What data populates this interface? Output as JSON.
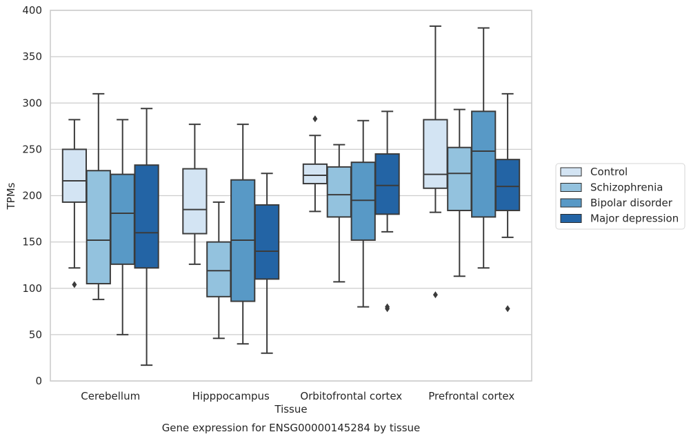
{
  "caption": "Gene expression for ENSG00000145284 by tissue",
  "chart_data": {
    "type": "box",
    "xlabel": "Tissue",
    "ylabel": "TPMs",
    "ylim": [
      0,
      400
    ],
    "yticks": [
      0,
      50,
      100,
      150,
      200,
      250,
      300,
      350,
      400
    ],
    "grid": "horizontal",
    "legend_position": "right",
    "categories": [
      "Cerebellum",
      "Hipppocampus",
      "Orbitofrontal cortex",
      "Prefrontal cortex"
    ],
    "series": [
      {
        "name": "Control",
        "color": "#d3e4f3",
        "boxes": [
          {
            "whisker_low": 122,
            "q1": 193,
            "median": 216,
            "q3": 250,
            "whisker_high": 282,
            "outliers": [
              104
            ]
          },
          {
            "whisker_low": 126,
            "q1": 159,
            "median": 185,
            "q3": 229,
            "whisker_high": 277,
            "outliers": []
          },
          {
            "whisker_low": 183,
            "q1": 213,
            "median": 222,
            "q3": 234,
            "whisker_high": 265,
            "outliers": [
              283
            ]
          },
          {
            "whisker_low": 182,
            "q1": 208,
            "median": 223,
            "q3": 282,
            "whisker_high": 383,
            "outliers": [
              93
            ]
          }
        ]
      },
      {
        "name": "Schizophrenia",
        "color": "#93c2de",
        "boxes": [
          {
            "whisker_low": 88,
            "q1": 105,
            "median": 152,
            "q3": 227,
            "whisker_high": 310,
            "outliers": []
          },
          {
            "whisker_low": 46,
            "q1": 91,
            "median": 119,
            "q3": 150,
            "whisker_high": 193,
            "outliers": []
          },
          {
            "whisker_low": 107,
            "q1": 177,
            "median": 201,
            "q3": 231,
            "whisker_high": 255,
            "outliers": []
          },
          {
            "whisker_low": 113,
            "q1": 184,
            "median": 224,
            "q3": 252,
            "whisker_high": 293,
            "outliers": []
          }
        ]
      },
      {
        "name": "Bipolar disorder",
        "color": "#5899c6",
        "boxes": [
          {
            "whisker_low": 50,
            "q1": 126,
            "median": 181,
            "q3": 223,
            "whisker_high": 282,
            "outliers": []
          },
          {
            "whisker_low": 40,
            "q1": 86,
            "median": 152,
            "q3": 217,
            "whisker_high": 277,
            "outliers": []
          },
          {
            "whisker_low": 80,
            "q1": 152,
            "median": 195,
            "q3": 236,
            "whisker_high": 281,
            "outliers": []
          },
          {
            "whisker_low": 122,
            "q1": 177,
            "median": 248,
            "q3": 291,
            "whisker_high": 381,
            "outliers": []
          }
        ]
      },
      {
        "name": "Major depression",
        "color": "#2364a5",
        "boxes": [
          {
            "whisker_low": 17,
            "q1": 122,
            "median": 160,
            "q3": 233,
            "whisker_high": 294,
            "outliers": []
          },
          {
            "whisker_low": 30,
            "q1": 110,
            "median": 140,
            "q3": 190,
            "whisker_high": 224,
            "outliers": []
          },
          {
            "whisker_low": 161,
            "q1": 180,
            "median": 211,
            "q3": 245,
            "whisker_high": 291,
            "outliers": [
              78,
              80
            ]
          },
          {
            "whisker_low": 155,
            "q1": 184,
            "median": 210,
            "q3": 239,
            "whisker_high": 310,
            "outliers": [
              78
            ]
          }
        ]
      }
    ]
  }
}
